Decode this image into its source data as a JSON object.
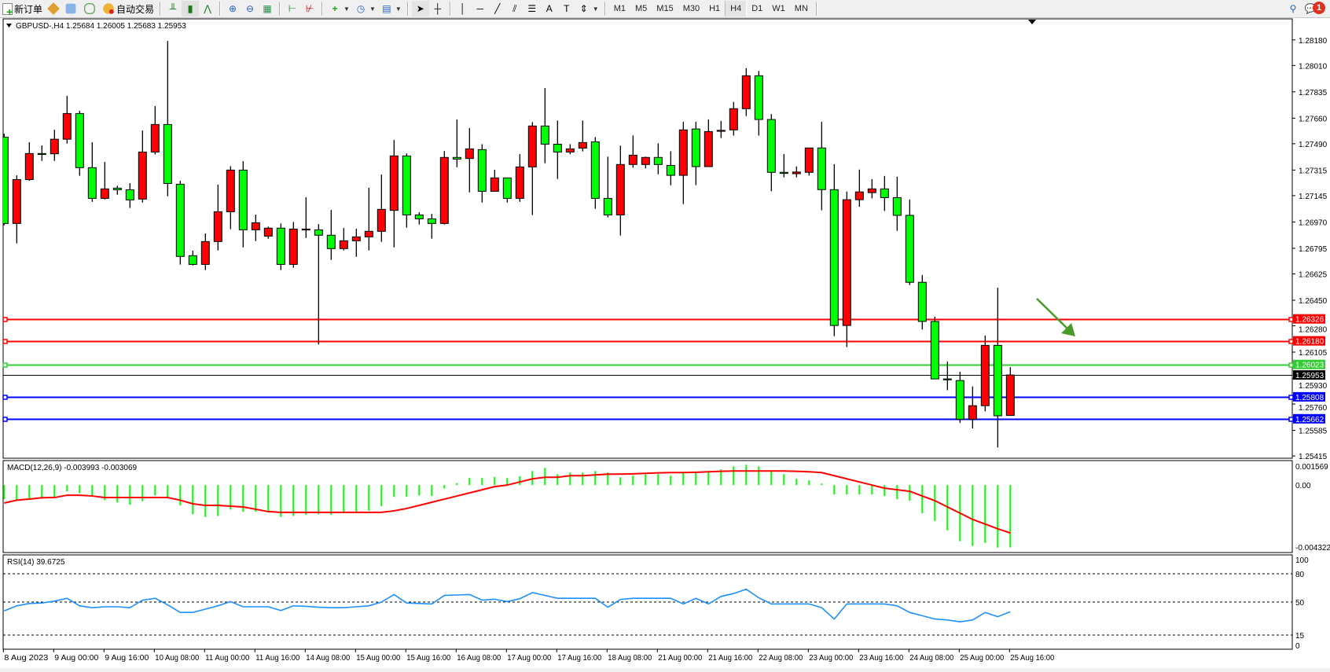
{
  "toolbar": {
    "new_order_label": "新订单",
    "auto_trading_label": "自动交易",
    "timeframes": [
      "M1",
      "M5",
      "M15",
      "M30",
      "H1",
      "H4",
      "D1",
      "W1",
      "MN"
    ],
    "active_timeframe": "H4",
    "notification_count": "1"
  },
  "main_chart": {
    "header": "GBPUSD-,H4  1.25684 1.26005 1.25683 1.25953",
    "symbol": "GBPUSD-",
    "timeframe": "H4",
    "up_color": "#ff0000",
    "down_color": "#00ff00",
    "price_axis": [
      "1.28180",
      "1.28010",
      "1.27835",
      "1.27660",
      "1.27490",
      "1.27315",
      "1.27145",
      "1.26970",
      "1.26795",
      "1.26625",
      "1.26450",
      "1.26280",
      "1.26105",
      "1.25930",
      "1.25760",
      "1.25585",
      "1.25415"
    ],
    "price_range": [
      1.25415,
      1.2818
    ],
    "candles_ohlc": [
      [
        1.27534,
        1.27557,
        1.26948,
        1.2696
      ],
      [
        1.2696,
        1.2728,
        1.26828,
        1.27252
      ],
      [
        1.27252,
        1.275,
        1.27244,
        1.27425
      ],
      [
        1.27425,
        1.27479,
        1.27376,
        1.27423
      ],
      [
        1.27423,
        1.27583,
        1.27376,
        1.2752
      ],
      [
        1.2752,
        1.27808,
        1.27491,
        1.27691
      ],
      [
        1.27691,
        1.27709,
        1.27277,
        1.27331
      ],
      [
        1.27331,
        1.275,
        1.27104,
        1.27127
      ],
      [
        1.27127,
        1.27369,
        1.2712,
        1.2719
      ],
      [
        1.27195,
        1.27211,
        1.27151,
        1.27184
      ],
      [
        1.27184,
        1.27228,
        1.27063,
        1.27117
      ],
      [
        1.27122,
        1.27578,
        1.27099,
        1.27435
      ],
      [
        1.27435,
        1.2774,
        1.27418,
        1.27618
      ],
      [
        1.27618,
        1.28173,
        1.27141,
        1.27226
      ],
      [
        1.27221,
        1.27244,
        1.26687,
        1.26741
      ],
      [
        1.26746,
        1.26779,
        1.26681,
        1.26688
      ],
      [
        1.26688,
        1.26894,
        1.2665,
        1.2684
      ],
      [
        1.2684,
        1.27218,
        1.26781,
        1.27038
      ],
      [
        1.27038,
        1.27341,
        1.26922,
        1.27315
      ],
      [
        1.27315,
        1.27374,
        1.26801,
        1.26918
      ],
      [
        1.26918,
        1.27019,
        1.26843,
        1.26965
      ],
      [
        1.26876,
        1.26939,
        1.26859,
        1.26929
      ],
      [
        1.26929,
        1.2696,
        1.2665,
        1.26688
      ],
      [
        1.26688,
        1.2697,
        1.26666,
        1.26923
      ],
      [
        1.26921,
        1.27134,
        1.26864,
        1.26923
      ],
      [
        1.26918,
        1.26956,
        1.26156,
        1.26882
      ],
      [
        1.26882,
        1.2705,
        1.26718,
        1.26793
      ],
      [
        1.26793,
        1.2693,
        1.26781,
        1.26845
      ],
      [
        1.26845,
        1.26925,
        1.26739,
        1.26871
      ],
      [
        1.26871,
        1.27197,
        1.26781,
        1.26908
      ],
      [
        1.26908,
        1.27285,
        1.26838,
        1.27054
      ],
      [
        1.27047,
        1.27515,
        1.26801,
        1.27409
      ],
      [
        1.27409,
        1.27426,
        1.26932,
        1.27017
      ],
      [
        1.27017,
        1.27035,
        1.26953,
        1.26991
      ],
      [
        1.26991,
        1.27024,
        1.26859,
        1.2696
      ],
      [
        1.2696,
        1.27442,
        1.26953,
        1.27399
      ],
      [
        1.27399,
        1.27651,
        1.27334,
        1.27388
      ],
      [
        1.27392,
        1.27594,
        1.27167,
        1.27456
      ],
      [
        1.27451,
        1.27487,
        1.27099,
        1.27174
      ],
      [
        1.27174,
        1.27317,
        1.27174,
        1.27263
      ],
      [
        1.27263,
        1.27263,
        1.27099,
        1.27127
      ],
      [
        1.27127,
        1.27421,
        1.27104,
        1.27336
      ],
      [
        1.27336,
        1.27634,
        1.27016,
        1.27608
      ],
      [
        1.27608,
        1.2786,
        1.2736,
        1.27487
      ],
      [
        1.27487,
        1.27644,
        1.27256,
        1.27435
      ],
      [
        1.27435,
        1.27487,
        1.2742,
        1.27456
      ],
      [
        1.27461,
        1.27644,
        1.27439,
        1.27498
      ],
      [
        1.27503,
        1.27534,
        1.27057,
        1.27127
      ],
      [
        1.27127,
        1.27404,
        1.27,
        1.27017
      ],
      [
        1.27017,
        1.27477,
        1.2688,
        1.27352
      ],
      [
        1.27352,
        1.27545,
        1.27331,
        1.27414
      ],
      [
        1.27352,
        1.27404,
        1.27326,
        1.27399
      ],
      [
        1.27399,
        1.27493,
        1.27287,
        1.27352
      ],
      [
        1.27346,
        1.2744,
        1.27214,
        1.2728
      ],
      [
        1.2728,
        1.27636,
        1.27089,
        1.27582
      ],
      [
        1.27588,
        1.27636,
        1.27215,
        1.27338
      ],
      [
        1.27338,
        1.27652,
        1.27338,
        1.27571
      ],
      [
        1.27577,
        1.27642,
        1.27528,
        1.27579
      ],
      [
        1.27582,
        1.27768,
        1.27544,
        1.27723
      ],
      [
        1.27723,
        1.27992,
        1.27674,
        1.27942
      ],
      [
        1.27942,
        1.27974,
        1.27544,
        1.27651
      ],
      [
        1.27651,
        1.27687,
        1.27174,
        1.273
      ],
      [
        1.273,
        1.27422,
        1.27267,
        1.27293
      ],
      [
        1.27291,
        1.27339,
        1.27267,
        1.27302
      ],
      [
        1.273,
        1.27462,
        1.27278,
        1.27462
      ],
      [
        1.27462,
        1.27636,
        1.27048,
        1.27185
      ],
      [
        1.27185,
        1.27354,
        1.26211,
        1.26282
      ],
      [
        1.26282,
        1.27172,
        1.26139,
        1.27118
      ],
      [
        1.27118,
        1.27318,
        1.27071,
        1.2717
      ],
      [
        1.27165,
        1.27255,
        1.27127,
        1.2719
      ],
      [
        1.2719,
        1.27276,
        1.27043,
        1.27132
      ],
      [
        1.27132,
        1.27271,
        1.26911,
        1.27014
      ],
      [
        1.27014,
        1.2712,
        1.26551,
        1.26569
      ],
      [
        1.26569,
        1.26618,
        1.26255,
        1.26309
      ],
      [
        1.26309,
        1.26341,
        1.25927,
        1.25927
      ],
      [
        1.25927,
        1.26042,
        1.25852,
        1.25922
      ],
      [
        1.25916,
        1.25974,
        1.25634,
        1.25659
      ],
      [
        1.25659,
        1.25877,
        1.25598,
        1.25749
      ],
      [
        1.25749,
        1.26215,
        1.25711,
        1.2615
      ],
      [
        1.2615,
        1.26533,
        1.25472,
        1.25682
      ],
      [
        1.25684,
        1.26005,
        1.25683,
        1.25953
      ]
    ],
    "horizontal_lines": [
      {
        "price": 1.26326,
        "label": "1.26326",
        "color": "#ff0000"
      },
      {
        "price": 1.2618,
        "label": "1.26180",
        "color": "#ff0000"
      },
      {
        "price": 1.26023,
        "label": "1.26023",
        "color": "#32cd32"
      },
      {
        "price": 1.25808,
        "label": "1.25808",
        "color": "#0000ff"
      },
      {
        "price": 1.25662,
        "label": "1.25662",
        "color": "#0000ff"
      }
    ],
    "bid_line": {
      "price": 1.25953,
      "label": "1.25953",
      "color": "#000000"
    },
    "arrow_color": "#4a9a2a"
  },
  "macd": {
    "header": "MACD(12,26,9) -0.003993 -0.003069",
    "axis": [
      "0.001569",
      "0.00",
      "-0.004322"
    ],
    "range": [
      -0.004322,
      0.001569
    ],
    "histogram_color": "#00ff00",
    "signal_color": "#ff0000",
    "histogram": [
      -0.0009,
      -0.00097,
      -0.00085,
      -0.00081,
      -0.00077,
      -0.0004,
      -0.00052,
      -0.00074,
      -0.00097,
      -0.00112,
      -0.00126,
      -0.00103,
      -0.00067,
      -0.0008,
      -0.0013,
      -0.00187,
      -0.00204,
      -0.00198,
      -0.00157,
      -0.00171,
      -0.00171,
      -0.00175,
      -0.00204,
      -0.00198,
      -0.00191,
      -0.00187,
      -0.00191,
      -0.0018,
      -0.00175,
      -0.00164,
      -0.00135,
      -0.00076,
      -0.00074,
      -0.00067,
      -0.0007,
      -0.00022,
      0.00013,
      0.00045,
      0.00045,
      0.00052,
      0.00045,
      0.00056,
      0.0009,
      0.0011,
      0.0007,
      0.0008,
      0.0008,
      0.0009,
      0.0008,
      0.0005,
      0.0006,
      0.0007,
      0.0007,
      0.0006,
      0.0008,
      0.0008,
      0.0009,
      0.001,
      0.0012,
      0.0013,
      0.0012,
      0.0009,
      0.0007,
      0.0004,
      0.0003,
      0.0001,
      -0.0006,
      -0.0006,
      -0.0006,
      -0.0006,
      -0.0007,
      -0.0009,
      -0.001,
      -0.0018,
      -0.0023,
      -0.0029,
      -0.0036,
      -0.0039,
      -0.0037,
      -0.004,
      -0.003993
    ],
    "signal": [
      -0.00115,
      -0.00097,
      -0.0009,
      -0.00081,
      -0.0008,
      -0.00065,
      -0.00065,
      -0.0007,
      -0.0008,
      -0.0008,
      -0.0008,
      -0.0008,
      -0.0008,
      -0.0008,
      -0.00097,
      -0.0012,
      -0.0013,
      -0.0013,
      -0.00135,
      -0.0014,
      -0.00155,
      -0.0017,
      -0.00175,
      -0.00175,
      -0.00175,
      -0.00175,
      -0.00175,
      -0.00175,
      -0.00175,
      -0.00175,
      -0.00175,
      -0.00165,
      -0.0015,
      -0.0013,
      -0.0011,
      -0.0009,
      -0.0007,
      -0.0005,
      -0.0003,
      -0.0001,
      0.0,
      0.0002,
      0.0004,
      0.0005,
      0.0005,
      0.0006,
      0.0006,
      0.00065,
      0.0007,
      0.0007,
      0.00072,
      0.00075,
      0.00078,
      0.0008,
      0.0008,
      0.00082,
      0.00085,
      0.00088,
      0.0009,
      0.0009,
      0.0009,
      0.0009,
      0.0009,
      0.00088,
      0.00085,
      0.0008,
      0.0006,
      0.0004,
      0.0002,
      0.0,
      -0.0002,
      -0.0003,
      -0.0004,
      -0.0007,
      -0.001,
      -0.0014,
      -0.0018,
      -0.0022,
      -0.0025,
      -0.0028,
      -0.003069
    ]
  },
  "rsi": {
    "header": "RSI(14) 39.6725",
    "axis": [
      "100",
      "80",
      "50",
      "15",
      "0"
    ],
    "levels": [
      80,
      50,
      15
    ],
    "color": "#1e90ff",
    "values": [
      40.6,
      46,
      48.5,
      49,
      51,
      54,
      46,
      44,
      45,
      45,
      44,
      52,
      54,
      47,
      39,
      39,
      42.5,
      46,
      50.5,
      45,
      45,
      45,
      41,
      46,
      45.5,
      44.5,
      44,
      44,
      45,
      46,
      50,
      58,
      49,
      48.5,
      48,
      57,
      57.5,
      58,
      52,
      53,
      50.5,
      53.6,
      60,
      57,
      54,
      54,
      54,
      54,
      44.5,
      52.7,
      54,
      54,
      54,
      54,
      48,
      54,
      48,
      56,
      59,
      63.6,
      54.5,
      48,
      48,
      48,
      48,
      44,
      32,
      48,
      48,
      48,
      48,
      46,
      39,
      35.5,
      32,
      31,
      29,
      31,
      39,
      34.5,
      39.6725
    ]
  },
  "time_axis": [
    "8 Aug 2023",
    "9 Aug 00:00",
    "9 Aug 16:00",
    "10 Aug 08:00",
    "11 Aug 00:00",
    "11 Aug 16:00",
    "14 Aug 08:00",
    "15 Aug 00:00",
    "15 Aug 16:00",
    "16 Aug 08:00",
    "17 Aug 00:00",
    "17 Aug 16:00",
    "18 Aug 08:00",
    "21 Aug 00:00",
    "21 Aug 16:00",
    "22 Aug 08:00",
    "23 Aug 00:00",
    "23 Aug 16:00",
    "24 Aug 08:00",
    "25 Aug 00:00",
    "25 Aug 16:00"
  ]
}
